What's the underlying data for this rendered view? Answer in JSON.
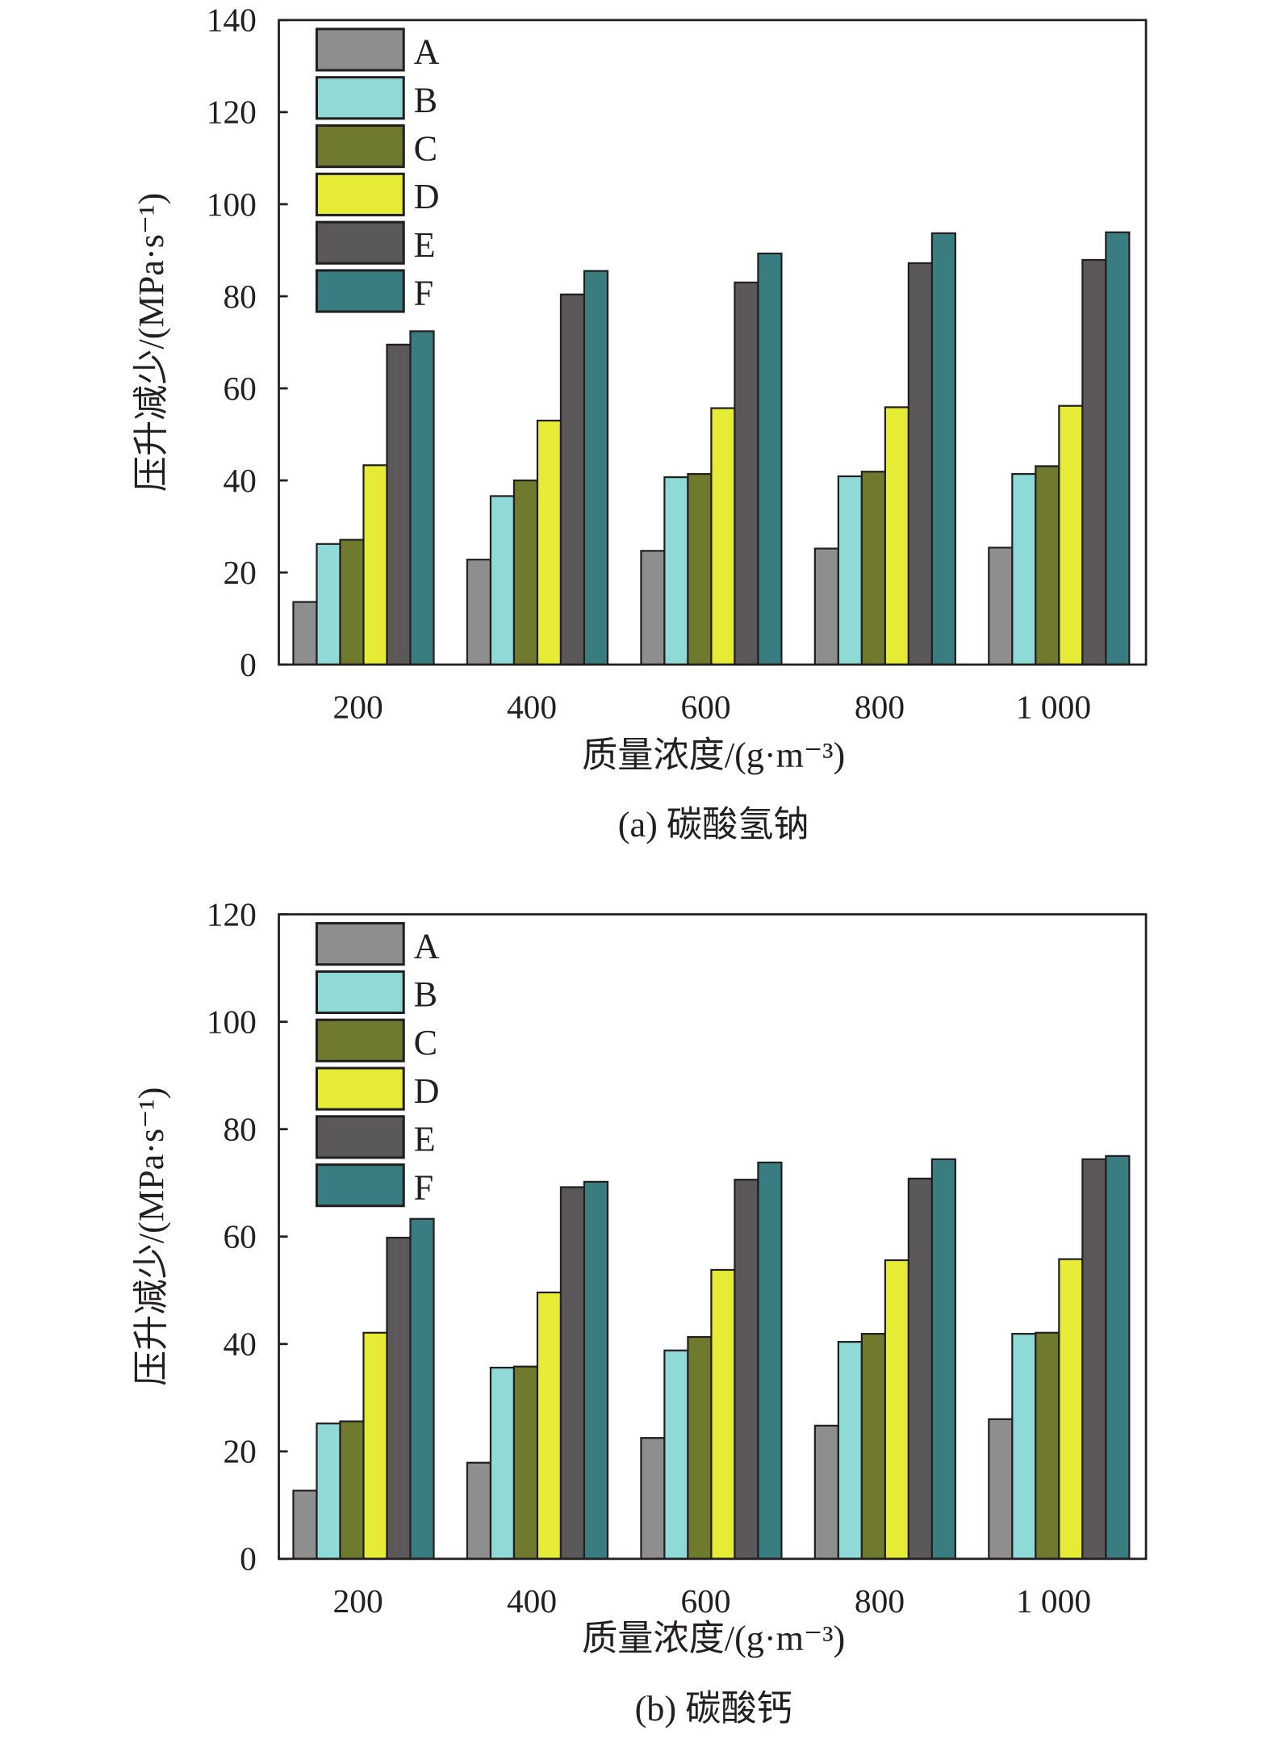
{
  "colors": {
    "A": "#8f8e8e",
    "B": "#8fdad7",
    "C": "#6f7a2e",
    "D": "#e6ec36",
    "E": "#5a5859",
    "F": "#397d80"
  },
  "chart_data": [
    {
      "type": "bar",
      "caption": "(a) 碳酸氢钠",
      "xlabel": "质量浓度/(g·m⁻³)",
      "ylabel": "压升减少/(MPa·s⁻¹)",
      "ylim": [
        0,
        140
      ],
      "yticks": [
        "0",
        "20",
        "40",
        "60",
        "80",
        "100",
        "120",
        "140"
      ],
      "categories": [
        "200",
        "400",
        "600",
        "800",
        "1 000"
      ],
      "legend_position": "top-left",
      "series": [
        {
          "name": "A",
          "values": [
            13.6,
            22.8,
            24.7,
            25.2,
            25.4
          ]
        },
        {
          "name": "B",
          "values": [
            26.2,
            36.6,
            40.7,
            40.9,
            41.4
          ]
        },
        {
          "name": "C",
          "values": [
            27.1,
            40.0,
            41.4,
            41.9,
            43.1
          ]
        },
        {
          "name": "D",
          "values": [
            43.3,
            53.0,
            55.7,
            55.9,
            56.2
          ]
        },
        {
          "name": "E",
          "values": [
            69.5,
            80.4,
            83.0,
            87.2,
            87.9
          ]
        },
        {
          "name": "F",
          "values": [
            72.4,
            85.5,
            89.3,
            93.7,
            93.9
          ]
        }
      ]
    },
    {
      "type": "bar",
      "caption": "(b) 碳酸钙",
      "xlabel": "质量浓度/(g·m⁻³)",
      "ylabel": "压升减少/(MPa·s⁻¹)",
      "ylim": [
        0,
        120
      ],
      "yticks": [
        "0",
        "20",
        "40",
        "60",
        "80",
        "100",
        "120"
      ],
      "categories": [
        "200",
        "400",
        "600",
        "800",
        "1 000"
      ],
      "legend_position": "top-left",
      "series": [
        {
          "name": "A",
          "values": [
            12.7,
            17.9,
            22.5,
            24.8,
            26.0
          ]
        },
        {
          "name": "B",
          "values": [
            25.2,
            35.6,
            38.8,
            40.4,
            41.9
          ]
        },
        {
          "name": "C",
          "values": [
            25.6,
            35.8,
            41.3,
            41.9,
            42.1
          ]
        },
        {
          "name": "D",
          "values": [
            42.1,
            49.6,
            53.8,
            55.6,
            55.8
          ]
        },
        {
          "name": "E",
          "values": [
            59.8,
            69.2,
            70.6,
            70.8,
            74.4
          ]
        },
        {
          "name": "F",
          "values": [
            63.3,
            70.2,
            73.8,
            74.4,
            75.0
          ]
        }
      ]
    }
  ]
}
